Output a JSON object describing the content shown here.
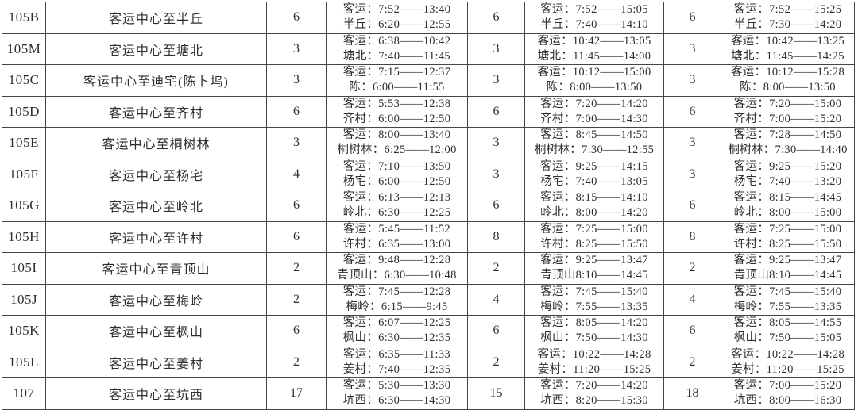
{
  "table": {
    "rows": [
      {
        "code": "105B",
        "name": "客运中心至半丘",
        "groups": [
          {
            "count": "6",
            "line1": "客运：7:52——13:40",
            "line2": "半丘：6:20——12:55"
          },
          {
            "count": "6",
            "line1": "客运：7:52——15:05",
            "line2": "半丘：7:40——14:10"
          },
          {
            "count": "6",
            "line1": "客运：7:52——15:25",
            "line2": "半丘：7:30——14:20"
          }
        ]
      },
      {
        "code": "105M",
        "name": "客运中心至塘北",
        "groups": [
          {
            "count": "3",
            "line1": "客运：6:38——10:42",
            "line2": "塘北：7:40——11:45"
          },
          {
            "count": "3",
            "line1": "客运：10:42——13:05",
            "line2": "塘北：11:45——14:00"
          },
          {
            "count": "3",
            "line1": "客运：10:42——13:25",
            "line2": "塘北：11:45——14:25"
          }
        ]
      },
      {
        "code": "105C",
        "name": "客运中心至迪宅(陈卜坞)",
        "groups": [
          {
            "count": "3",
            "line1": "客运：7:15——12:37",
            "line2": "陈：6:00——11:55"
          },
          {
            "count": "3",
            "line1": "客运：10:12——15:00",
            "line2": "陈：8:00——13:50"
          },
          {
            "count": "3",
            "line1": "客运：10:12——15:28",
            "line2": "陈：8:00——13:50"
          }
        ]
      },
      {
        "code": "105D",
        "name": "客运中心至齐村",
        "groups": [
          {
            "count": "6",
            "line1": "客运：5:53——12:38",
            "line2": "齐村：6:00——12:50"
          },
          {
            "count": "6",
            "line1": "客运：7:20——14:20",
            "line2": "齐村：7:00——14:30"
          },
          {
            "count": "6",
            "line1": "客运：7:20——15:00",
            "line2": "齐村：7:00——15:20"
          }
        ]
      },
      {
        "code": "105E",
        "name": "客运中心至桐树林",
        "groups": [
          {
            "count": "3",
            "line1": "客运：8:00——13:40",
            "line2": "桐树林：6:25——12:00"
          },
          {
            "count": "3",
            "line1": "客运：8:45——14:50",
            "line2": "桐树林：7:30——12:55"
          },
          {
            "count": "3",
            "line1": "客运：7:28——14:50",
            "line2": "桐树林：7:30——14:40"
          }
        ]
      },
      {
        "code": "105F",
        "name": "客运中心至杨宅",
        "groups": [
          {
            "count": "4",
            "line1": "客运：7:10——13:50",
            "line2": "杨宅：6:00——12:50"
          },
          {
            "count": "3",
            "line1": "客运：9:25——14:15",
            "line2": "杨宅：7:40——13:05"
          },
          {
            "count": "3",
            "line1": "客运：9:25——15:20",
            "line2": "杨宅：7:40——13:20"
          }
        ]
      },
      {
        "code": "105G",
        "name": "客运中心至岭北",
        "groups": [
          {
            "count": "6",
            "line1": "客运：6:13——12:13",
            "line2": "岭北：6:30——12:25"
          },
          {
            "count": "6",
            "line1": "客运：8:15——14:10",
            "line2": "岭北：8:00——14:20"
          },
          {
            "count": "6",
            "line1": "客运：8:15——14:45",
            "line2": "岭北：8:00——15:00"
          }
        ]
      },
      {
        "code": "105H",
        "name": "客运中心至许村",
        "groups": [
          {
            "count": "6",
            "line1": "客运：5:45——11:52",
            "line2": "许村：6:35——13:00"
          },
          {
            "count": "8",
            "line1": "客运：7:25——15:00",
            "line2": "许村：8:25——15:50"
          },
          {
            "count": "8",
            "line1": "客运：7:25——15:00",
            "line2": "许村：8:25——15:50"
          }
        ]
      },
      {
        "code": "105I",
        "name": "客运中心至青顶山",
        "groups": [
          {
            "count": "2",
            "line1": "客运：9:48——12:28",
            "line2": "青顶山：6:30——10:48"
          },
          {
            "count": "2",
            "line1": "客运：9:25——13:47",
            "line2": "青顶山8:10——14:45"
          },
          {
            "count": "2",
            "line1": "客运：9:25——13:47",
            "line2": "青顶山8:10——14:45"
          }
        ]
      },
      {
        "code": "105J",
        "name": "客运中心至梅岭",
        "groups": [
          {
            "count": "2",
            "line1": "客运：7:45——12:28",
            "line2": "梅岭：6:15——9:45"
          },
          {
            "count": "4",
            "line1": "客运：7:45——15:40",
            "line2": "梅岭：7:55——13:35"
          },
          {
            "count": "4",
            "line1": "客运：7:45——15:40",
            "line2": "梅岭：7:55——13:35"
          }
        ]
      },
      {
        "code": "105K",
        "name": "客运中心至枫山",
        "groups": [
          {
            "count": "6",
            "line1": "客运：6:07——12:25",
            "line2": "枫山：6:30——12:35"
          },
          {
            "count": "6",
            "line1": "客运：8:05——14:20",
            "line2": "枫山：7:50——14:30"
          },
          {
            "count": "6",
            "line1": "客运：8:05——14:55",
            "line2": "枫山：7:50——15:05"
          }
        ]
      },
      {
        "code": "105L",
        "name": "客运中心至姜村",
        "groups": [
          {
            "count": "2",
            "line1": "客运：6:35——11:33",
            "line2": "姜村：7:40——12:35"
          },
          {
            "count": "2",
            "line1": "客运：10:22——14:28",
            "line2": "姜村：11:20——15:25"
          },
          {
            "count": "2",
            "line1": "客运：10:22——14:28",
            "line2": "姜村：11:20——15:25"
          }
        ]
      },
      {
        "code": "107",
        "name": "客运中心至坑西",
        "groups": [
          {
            "count": "17",
            "line1": "客运：5:30——13:30",
            "line2": "坑西：6:30——14:30"
          },
          {
            "count": "15",
            "line1": "客运：7:20——14:20",
            "line2": "坑西：8:20——15:30"
          },
          {
            "count": "18",
            "line1": "客运：7:00——15:20",
            "line2": "坑西：8:00——16:30"
          }
        ]
      }
    ]
  }
}
